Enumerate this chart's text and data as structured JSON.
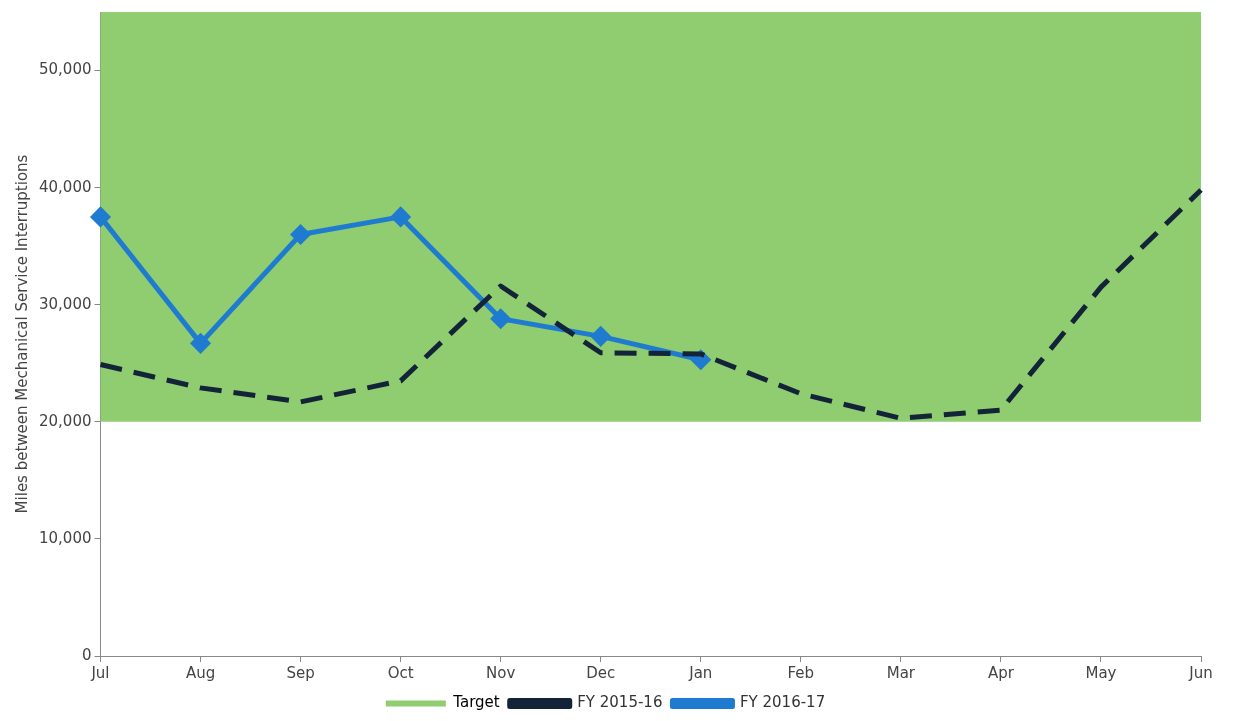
{
  "chart_data": {
    "type": "line",
    "ylabel": "Miles between Mechanical Service Interruptions",
    "categories": [
      "Jul",
      "Aug",
      "Sep",
      "Oct",
      "Nov",
      "Dec",
      "Jan",
      "Feb",
      "Mar",
      "Apr",
      "May",
      "Jun"
    ],
    "series": [
      {
        "name": "FY 2015-16",
        "color": "#142438",
        "line_style": "dashed",
        "marker": "none",
        "values": [
          24900,
          22900,
          21700,
          23500,
          31600,
          25900,
          25800,
          22400,
          20300,
          21000,
          31500,
          39800
        ]
      },
      {
        "name": "FY 2016-17",
        "color": "#1f7bd0",
        "line_style": "solid",
        "marker": "diamond",
        "values": [
          37500,
          26700,
          36000,
          37500,
          28800,
          27300,
          25300,
          null,
          null,
          null,
          null,
          null
        ]
      }
    ],
    "bands": [
      {
        "axis": "y",
        "from": 20000,
        "to": 55000,
        "label": "Target",
        "color": "#90cc70"
      }
    ],
    "ylim": [
      0,
      55000
    ],
    "yticks": [
      {
        "value": 0,
        "label": "0"
      },
      {
        "value": 10000,
        "label": "10,000"
      },
      {
        "value": 20000,
        "label": "20,000"
      },
      {
        "value": 30000,
        "label": "30,000"
      },
      {
        "value": 40000,
        "label": "40,000"
      },
      {
        "value": 50000,
        "label": "50,000"
      }
    ],
    "grid": false,
    "legend": "bottom"
  }
}
